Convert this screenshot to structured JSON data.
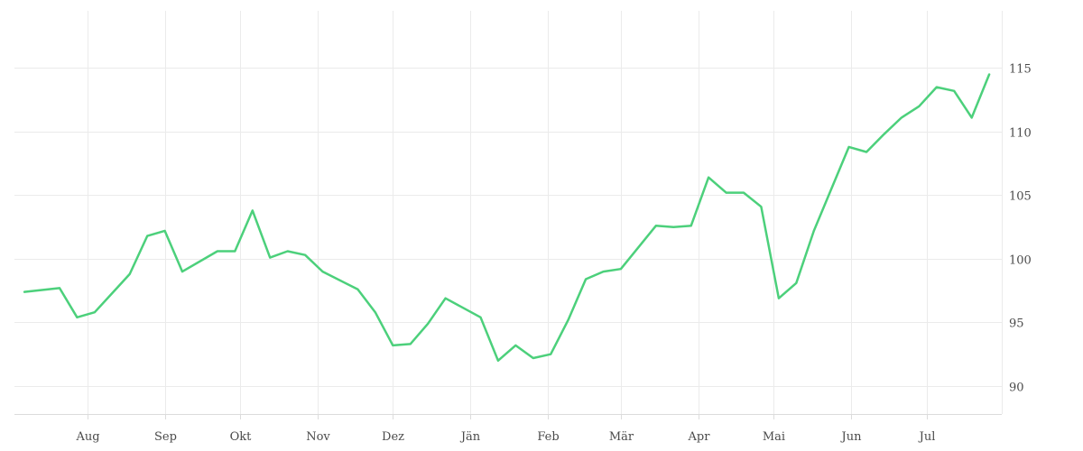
{
  "chart_data": {
    "type": "line",
    "title": "",
    "xlabel": "",
    "ylabel": "",
    "x_tick_labels": [
      "Aug",
      "Sep",
      "Okt",
      "Nov",
      "Dez",
      "Jän",
      "Feb",
      "Mär",
      "Apr",
      "Mai",
      "Jun",
      "Jul"
    ],
    "y_ticks": [
      90,
      95,
      100,
      105,
      110,
      115
    ],
    "ylim": [
      87.8,
      119.5
    ],
    "y_axis_side": "right",
    "grid": true,
    "colors": {
      "series": "#4cd07b"
    },
    "series": [
      {
        "x": [
          "2019-07-07",
          "2019-07-21",
          "2019-07-28",
          "2019-08-04",
          "2019-08-18",
          "2019-08-25",
          "2019-09-01",
          "2019-09-08",
          "2019-09-22",
          "2019-09-29",
          "2019-10-06",
          "2019-10-13",
          "2019-10-20",
          "2019-10-27",
          "2019-11-03",
          "2019-11-17",
          "2019-11-24",
          "2019-12-01",
          "2019-12-08",
          "2019-12-15",
          "2019-12-22",
          "2020-01-05",
          "2020-01-12",
          "2020-01-19",
          "2020-01-26",
          "2020-02-02",
          "2020-02-09",
          "2020-02-16",
          "2020-02-23",
          "2020-03-01",
          "2020-03-15",
          "2020-03-22",
          "2020-03-29",
          "2020-04-05",
          "2020-04-12",
          "2020-04-19",
          "2020-04-26",
          "2020-05-03",
          "2020-05-10",
          "2020-05-17",
          "2020-05-24",
          "2020-05-31",
          "2020-06-07",
          "2020-06-14",
          "2020-06-21",
          "2020-06-28",
          "2020-07-05",
          "2020-07-12",
          "2020-07-19",
          "2020-07-26"
        ],
        "values": [
          97.4,
          97.7,
          95.4,
          95.8,
          98.8,
          101.8,
          102.2,
          99.0,
          100.6,
          100.6,
          103.8,
          100.1,
          100.6,
          100.3,
          99.0,
          97.6,
          95.8,
          93.2,
          93.3,
          94.9,
          96.9,
          95.4,
          92.0,
          93.2,
          92.2,
          92.5,
          95.2,
          98.4,
          99.0,
          99.2,
          102.6,
          102.5,
          102.6,
          106.4,
          105.2,
          105.2,
          104.1,
          96.9,
          98.1,
          102.2,
          105.5,
          108.8,
          108.4,
          109.8,
          111.1,
          112.0,
          113.5,
          113.2,
          111.1,
          114.5
        ]
      }
    ]
  }
}
